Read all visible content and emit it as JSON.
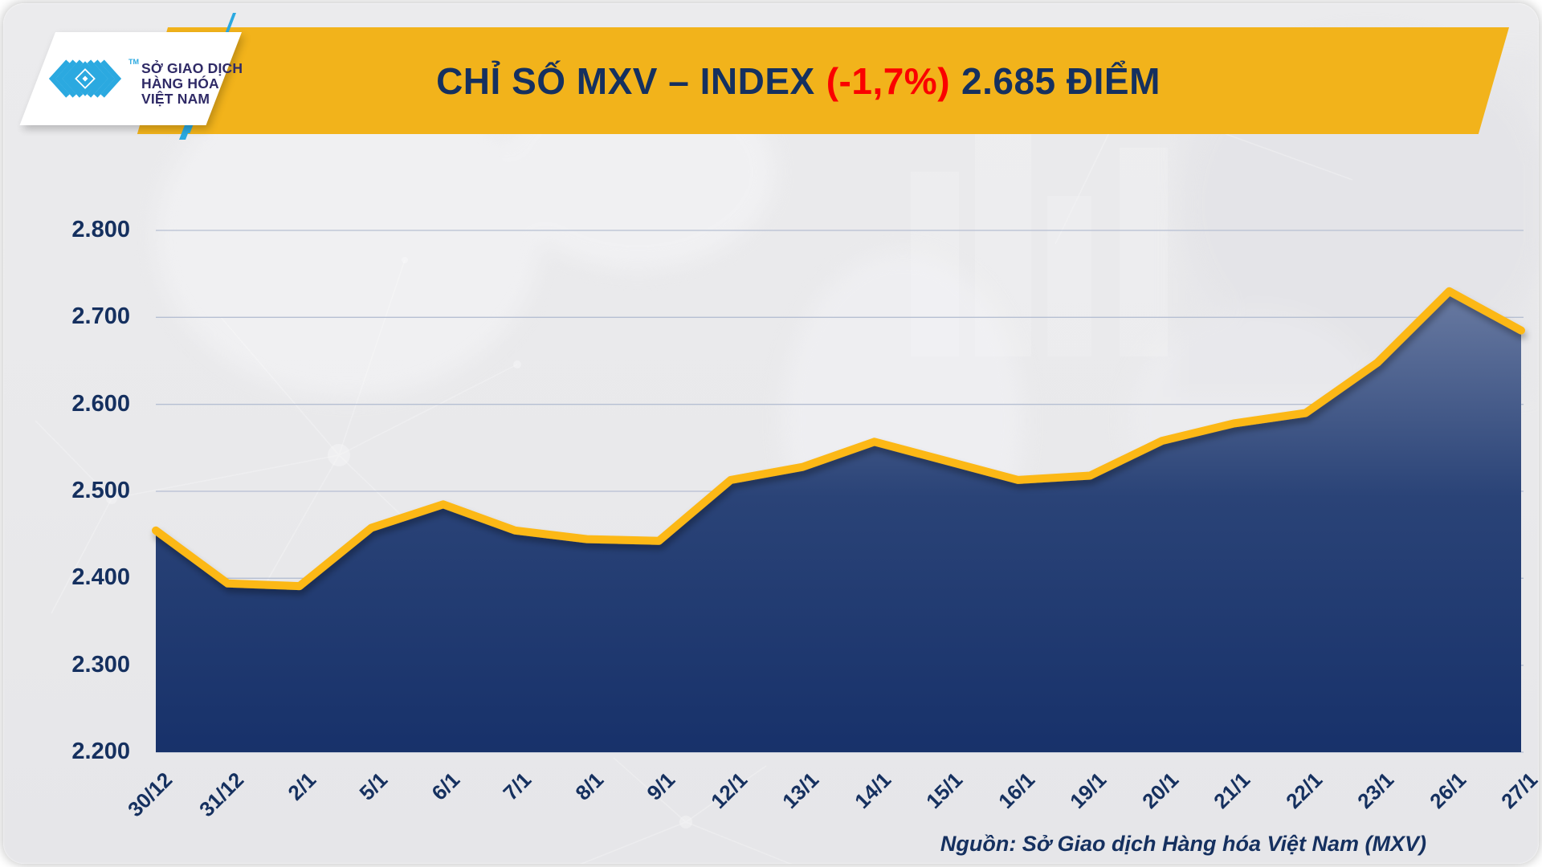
{
  "header": {
    "logo": {
      "line1": "SỞ GIAO DỊCH",
      "line2": "HÀNG HÓA",
      "line3": "VIỆT NAM",
      "tm": "TM"
    },
    "title_part1": "CHỈ SỐ MXV – INDEX",
    "title_change": "(-1,7%)",
    "title_part2": "2.685 ĐIỂM"
  },
  "footer": {
    "source": "Nguồn: Sở Giao dịch Hàng hóa Việt Nam (MXV)"
  },
  "colors": {
    "banner_yellow": "#f2b31b",
    "title_navy": "#15305f",
    "title_red": "#fb0000",
    "line_gold": "#fcb814",
    "area_top": "#6b7ca3",
    "area_bottom": "#17316a",
    "gridline": "#b6bfd2",
    "axis_text": "#15305f",
    "logo_blue": "#2ba9e0",
    "logo_text": "#2f2a66",
    "background": "#e9e9eb"
  },
  "chart_data": {
    "type": "area",
    "title": "CHỈ SỐ MXV – INDEX (-1,7%) 2.685 ĐIỂM",
    "xlabel": "",
    "ylabel": "",
    "categories": [
      "30/12",
      "31/12",
      "2/1",
      "5/1",
      "6/1",
      "7/1",
      "8/1",
      "9/1",
      "12/1",
      "13/1",
      "14/1",
      "15/1",
      "16/1",
      "19/1",
      "20/1",
      "21/1",
      "22/1",
      "23/1",
      "26/1",
      "27/1"
    ],
    "values": [
      2455,
      2394,
      2391,
      2458,
      2485,
      2455,
      2445,
      2443,
      2513,
      2528,
      2557,
      2535,
      2513,
      2518,
      2558,
      2578,
      2590,
      2648,
      2730,
      2685
    ],
    "last_value_label": "2.685",
    "change_percent": "-1,7%",
    "y_tick_labels": [
      "2.800",
      "2.700",
      "2.600",
      "2.500",
      "2.400",
      "2.300",
      "2.200"
    ],
    "y_tick_values": [
      2800,
      2700,
      2600,
      2500,
      2400,
      2300,
      2200
    ],
    "ylim": [
      2200,
      2800
    ],
    "grid": "horizontal-only",
    "legend": "none"
  }
}
